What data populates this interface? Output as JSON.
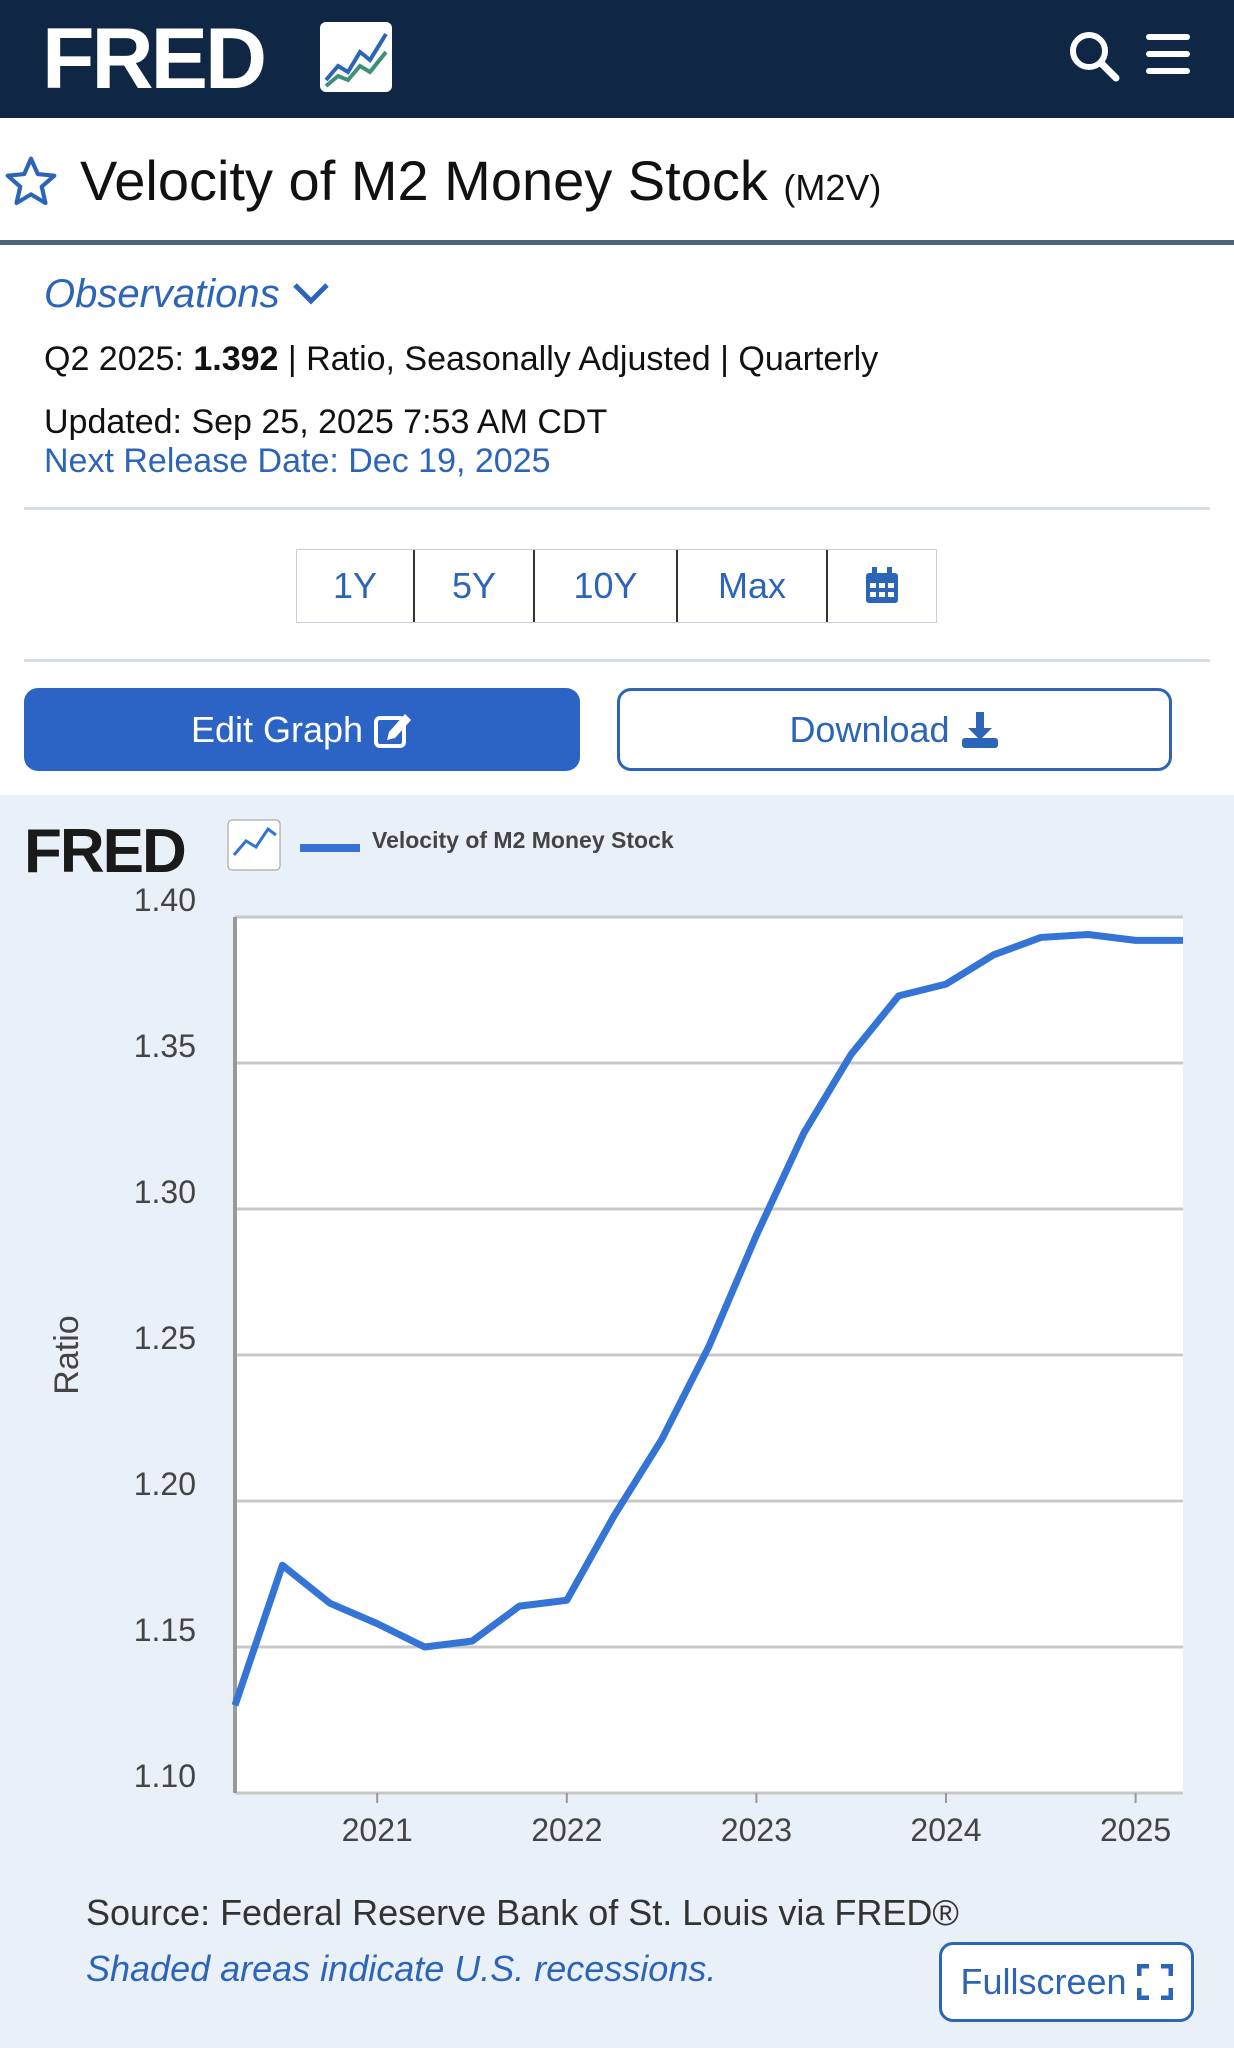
{
  "header": {
    "logo": "FRED",
    "icons": [
      "search-icon",
      "menu-icon"
    ]
  },
  "series": {
    "title": "Velocity of M2 Money Stock",
    "id": "(M2V)"
  },
  "observations": {
    "label": "Observations",
    "period": "Q2 2025:",
    "value": "1.392",
    "details": "| Ratio, Seasonally Adjusted | Quarterly",
    "updated": "Updated: Sep 25, 2025 7:53 AM CDT",
    "next_release": "Next Release Date: Dec 19, 2025"
  },
  "ranges": [
    "1Y",
    "5Y",
    "10Y",
    "Max"
  ],
  "buttons": {
    "edit": "Edit Graph",
    "download": "Download",
    "fullscreen": "Fullscreen"
  },
  "footer": {
    "source": "Source: Federal Reserve Bank of St. Louis via FRED®",
    "shaded": "Shaded areas indicate U.S. recessions."
  },
  "chart_data": {
    "type": "line",
    "legend": "Velocity of M2 Money Stock",
    "ylabel": "Ratio",
    "ylim": [
      1.1,
      1.4
    ],
    "yticks": [
      "1.10",
      "1.15",
      "1.20",
      "1.25",
      "1.30",
      "1.35",
      "1.40"
    ],
    "xticks": [
      "2021",
      "2022",
      "2023",
      "2024",
      "2025"
    ],
    "grid": true,
    "color": "#3474d6",
    "x": [
      "2020-04-01",
      "2020-07-01",
      "2020-10-01",
      "2021-01-01",
      "2021-04-01",
      "2021-07-01",
      "2021-10-01",
      "2022-01-01",
      "2022-04-01",
      "2022-07-01",
      "2022-10-01",
      "2023-01-01",
      "2023-04-01",
      "2023-07-01",
      "2023-10-01",
      "2024-01-01",
      "2024-04-01",
      "2024-07-01",
      "2024-10-01",
      "2025-01-01",
      "2025-04-01"
    ],
    "values": [
      1.13,
      1.178,
      1.165,
      1.158,
      1.15,
      1.152,
      1.164,
      1.166,
      1.195,
      1.221,
      1.253,
      1.291,
      1.326,
      1.353,
      1.373,
      1.377,
      1.387,
      1.393,
      1.394,
      1.392,
      1.392
    ]
  }
}
